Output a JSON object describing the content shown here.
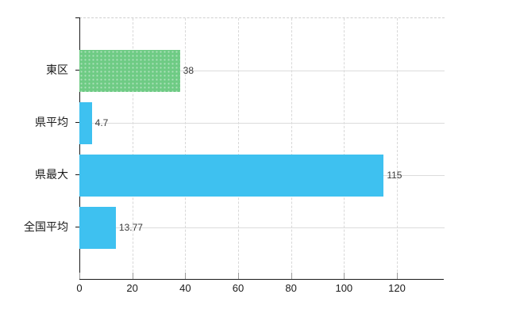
{
  "chart_data": {
    "type": "bar",
    "orientation": "horizontal",
    "title": "",
    "xlabel": "",
    "ylabel": "",
    "categories": [
      "東区",
      "県平均",
      "県最大",
      "全国平均"
    ],
    "values": [
      38,
      4.7,
      115,
      13.77
    ],
    "value_labels": [
      "38",
      "4.7",
      "115",
      "13.77"
    ],
    "bar_colors": [
      "#6ecb84",
      "#3ec1f0",
      "#3ec1f0",
      "#3ec1f0"
    ],
    "bar_textured": [
      true,
      false,
      false,
      false
    ],
    "x_tick_labels": [
      "0",
      "20",
      "40",
      "60",
      "80",
      "100",
      "120"
    ],
    "x_tick_values": [
      0,
      20,
      40,
      60,
      80,
      100,
      120
    ],
    "xlim": [
      0,
      138
    ],
    "legend": "none",
    "grid": "on"
  },
  "colors": {
    "green_bar": "#6ecb84",
    "blue_bar": "#3ec1f0",
    "axis": "#1a1a1a",
    "vertical_gridline": "#d8d8d8",
    "horizontal_gridline": "#dcdcdc",
    "top_frame_dashed": "#cfcfcf",
    "value_text": "#3a3a3a",
    "tick_text": "#1a1a1a",
    "background": "#ffffff"
  }
}
